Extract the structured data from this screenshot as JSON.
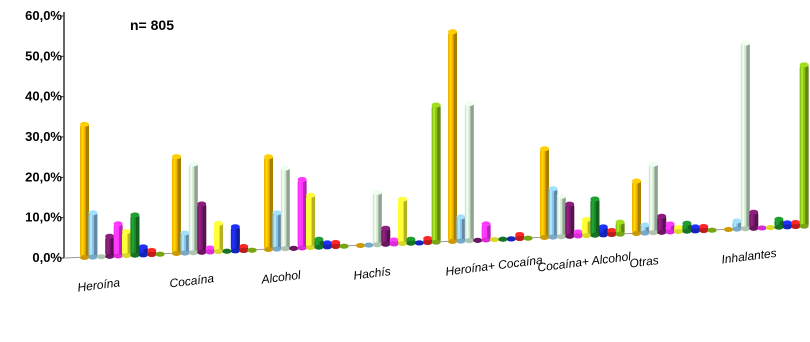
{
  "chart_data": {
    "type": "bar",
    "title": "",
    "annotation": "n= 805",
    "xlabel": "",
    "ylabel": "",
    "ylim": [
      0,
      60
    ],
    "y_ticks": [
      "0,0%",
      "10,0%",
      "20,0%",
      "30,0%",
      "40,0%",
      "50,0%",
      "60,0%"
    ],
    "grid": false,
    "legend": "none",
    "categories": [
      "Heroína",
      "Cocaína",
      "Alcohol",
      "Hachís",
      "Heroína+ Cocaína",
      "Cocaína+ Alcohol",
      "Otras",
      "Inhalantes"
    ],
    "series": [
      {
        "color": "#f0b400",
        "values": [
          33,
          24,
          23,
          0,
          52,
          22,
          13,
          0
        ]
      },
      {
        "color": "#8cc4ec",
        "values": [
          11,
          5,
          9,
          0,
          6,
          12,
          2,
          2
        ]
      },
      {
        "color": "#cfe8cf",
        "values": [
          0,
          22,
          20,
          13,
          34,
          10,
          17,
          46
        ]
      },
      {
        "color": "#7a1a6e",
        "values": [
          5,
          12,
          0,
          4,
          0,
          8,
          4,
          4
        ]
      },
      {
        "color": "#ff33ff",
        "values": [
          8,
          1,
          17,
          1,
          4,
          1,
          2,
          0
        ]
      },
      {
        "color": "#ffff33",
        "values": [
          6,
          7,
          13,
          11,
          0,
          4,
          1,
          0
        ]
      },
      {
        "color": "#1a8a2a",
        "values": [
          10,
          0,
          2,
          1,
          0,
          9,
          2,
          2
        ]
      },
      {
        "color": "#1a2ae0",
        "values": [
          2,
          6,
          1,
          0,
          0,
          2,
          1,
          1
        ]
      },
      {
        "color": "#e02020",
        "values": [
          1,
          1,
          1,
          1,
          1,
          1,
          1,
          1
        ]
      },
      {
        "color": "#8cc21a",
        "values": [
          0,
          0,
          0,
          34,
          0,
          3,
          0,
          40
        ]
      }
    ]
  }
}
